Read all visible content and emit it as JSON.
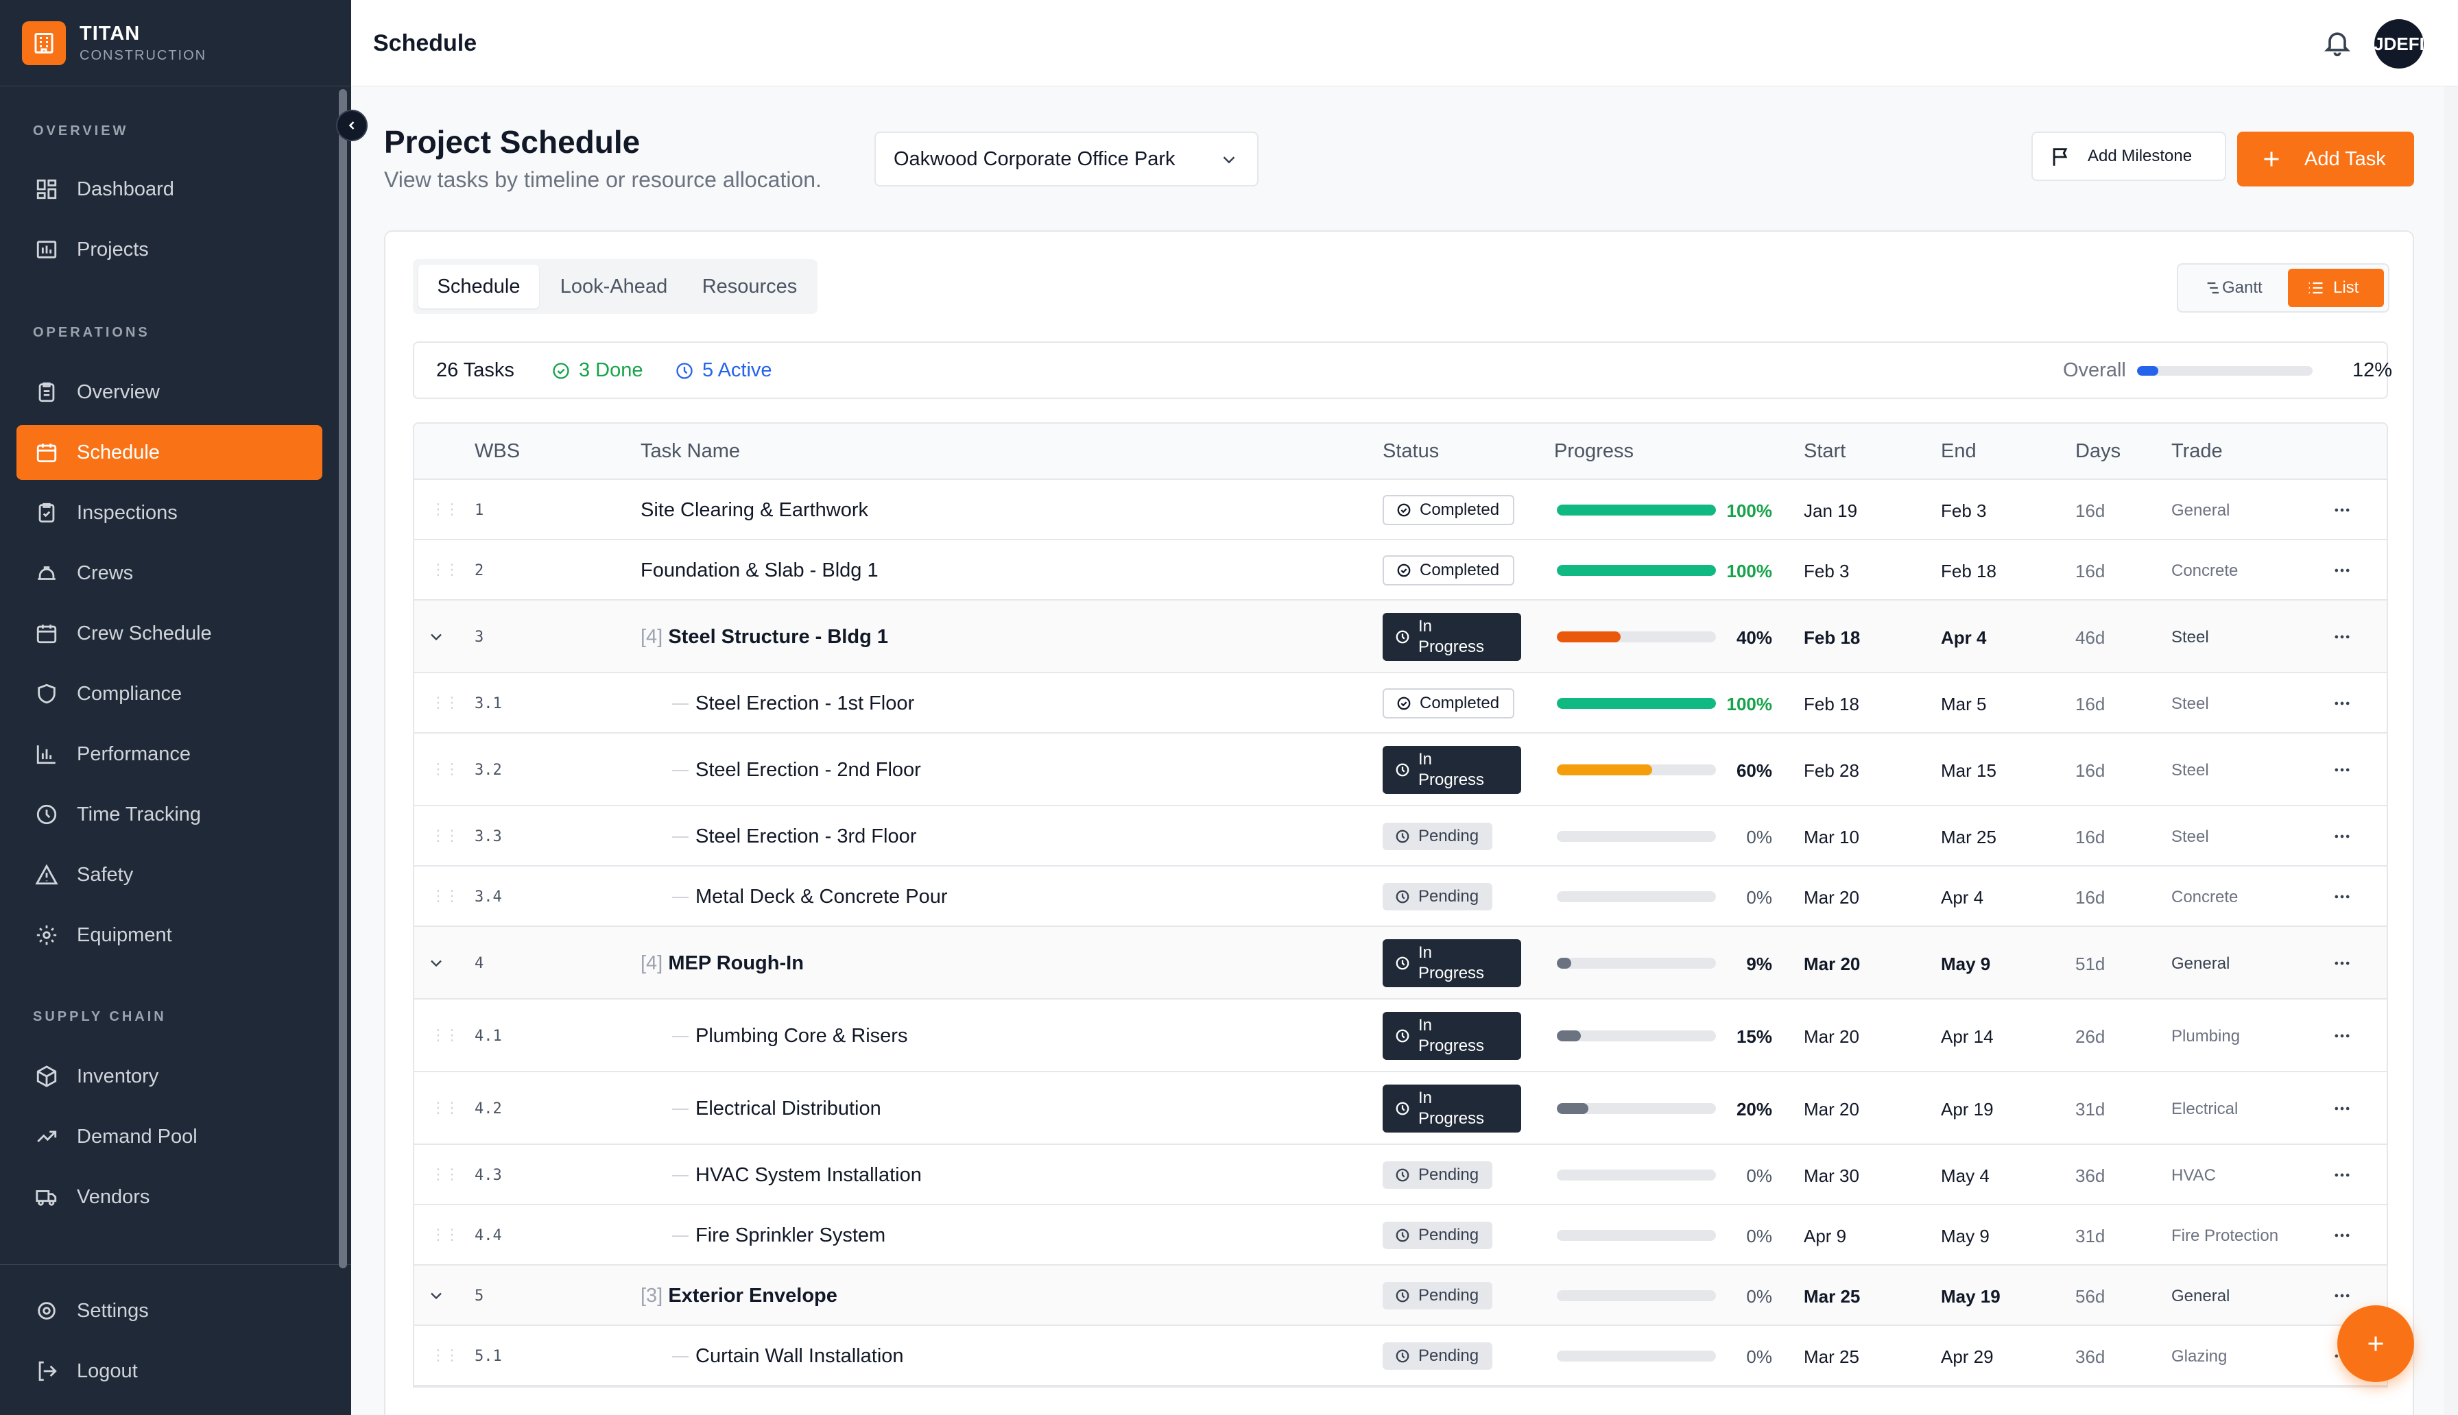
{
  "brand": {
    "name": "TITAN",
    "sub": "CONSTRUCTION"
  },
  "sidebar": {
    "sections": [
      {
        "label": "OVERVIEW"
      },
      {
        "label": "OPERATIONS"
      },
      {
        "label": "SUPPLY CHAIN"
      }
    ],
    "items": [
      {
        "label": "Dashboard",
        "icon": "dashboard-icon"
      },
      {
        "label": "Projects",
        "icon": "projects-icon"
      },
      {
        "label": "Overview",
        "icon": "clipboard-icon"
      },
      {
        "label": "Schedule",
        "icon": "calendar-icon",
        "active": true
      },
      {
        "label": "Inspections",
        "icon": "clipboard-check-icon"
      },
      {
        "label": "Crews",
        "icon": "hardhat-icon"
      },
      {
        "label": "Crew Schedule",
        "icon": "calendar-icon"
      },
      {
        "label": "Compliance",
        "icon": "shield-icon"
      },
      {
        "label": "Performance",
        "icon": "bar-chart-icon"
      },
      {
        "label": "Time Tracking",
        "icon": "clock-icon"
      },
      {
        "label": "Safety",
        "icon": "warning-icon"
      },
      {
        "label": "Equipment",
        "icon": "gear-icon"
      },
      {
        "label": "Inventory",
        "icon": "box-icon"
      },
      {
        "label": "Demand Pool",
        "icon": "trending-icon"
      },
      {
        "label": "Vendors",
        "icon": "truck-icon"
      },
      {
        "label": "Settings",
        "icon": "settings-icon"
      },
      {
        "label": "Logout",
        "icon": "logout-icon"
      }
    ]
  },
  "topbar": {
    "title": "Schedule",
    "avatar": "JDEFI"
  },
  "header": {
    "title": "Project Schedule",
    "subtitle": "View tasks by timeline or resource allocation.",
    "project": "Oakwood Corporate Office Park",
    "add_milestone": "Add Milestone",
    "add_task": "Add Task"
  },
  "tabs": [
    "Schedule",
    "Look-Ahead",
    "Resources"
  ],
  "view_toggle": {
    "gantt": "Gantt",
    "list": "List"
  },
  "summary": {
    "tasks": "26 Tasks",
    "done": "3 Done",
    "active": "5 Active",
    "overall_label": "Overall",
    "overall_pct": "12%",
    "overall_value": 0.12
  },
  "columns": {
    "wbs": "WBS",
    "task": "Task Name",
    "status": "Status",
    "progress": "Progress",
    "start": "Start",
    "end": "End",
    "days": "Days",
    "trade": "Trade"
  },
  "rows": [
    {
      "wbs": "1",
      "name": "Site Clearing & Earthwork",
      "status": "Completed",
      "progress": 100,
      "pct": "100%",
      "start": "Jan 19",
      "end": "Feb 3",
      "days": "16d",
      "trade": "General",
      "level": 0,
      "count": ""
    },
    {
      "wbs": "2",
      "name": "Foundation & Slab - Bldg 1",
      "status": "Completed",
      "progress": 100,
      "pct": "100%",
      "start": "Feb 3",
      "end": "Feb 18",
      "days": "16d",
      "trade": "Concrete",
      "level": 0,
      "count": ""
    },
    {
      "wbs": "3",
      "name": "Steel Structure - Bldg 1",
      "status": "In Progress",
      "progress": 40,
      "pct": "40%",
      "start": "Feb 18",
      "end": "Apr 4",
      "days": "46d",
      "trade": "Steel",
      "level": 0,
      "count": "[4]",
      "color": "#ea580c"
    },
    {
      "wbs": "3.1",
      "name": "Steel Erection - 1st Floor",
      "status": "Completed",
      "progress": 100,
      "pct": "100%",
      "start": "Feb 18",
      "end": "Mar 5",
      "days": "16d",
      "trade": "Steel",
      "level": 1,
      "count": ""
    },
    {
      "wbs": "3.2",
      "name": "Steel Erection - 2nd Floor",
      "status": "In Progress",
      "progress": 60,
      "pct": "60%",
      "start": "Feb 28",
      "end": "Mar 15",
      "days": "16d",
      "trade": "Steel",
      "level": 1,
      "count": "",
      "color": "#f59e0b"
    },
    {
      "wbs": "3.3",
      "name": "Steel Erection - 3rd Floor",
      "status": "Pending",
      "progress": 0,
      "pct": "0%",
      "start": "Mar 10",
      "end": "Mar 25",
      "days": "16d",
      "trade": "Steel",
      "level": 1,
      "count": ""
    },
    {
      "wbs": "3.4",
      "name": "Metal Deck & Concrete Pour",
      "status": "Pending",
      "progress": 0,
      "pct": "0%",
      "start": "Mar 20",
      "end": "Apr 4",
      "days": "16d",
      "trade": "Concrete",
      "level": 1,
      "count": ""
    },
    {
      "wbs": "4",
      "name": "MEP Rough-In",
      "status": "In Progress",
      "progress": 9,
      "pct": "9%",
      "start": "Mar 20",
      "end": "May 9",
      "days": "51d",
      "trade": "General",
      "level": 0,
      "count": "[4]",
      "color": "#6b7280"
    },
    {
      "wbs": "4.1",
      "name": "Plumbing Core & Risers",
      "status": "In Progress",
      "progress": 15,
      "pct": "15%",
      "start": "Mar 20",
      "end": "Apr 14",
      "days": "26d",
      "trade": "Plumbing",
      "level": 1,
      "count": "",
      "color": "#6b7280"
    },
    {
      "wbs": "4.2",
      "name": "Electrical Distribution",
      "status": "In Progress",
      "progress": 20,
      "pct": "20%",
      "start": "Mar 20",
      "end": "Apr 19",
      "days": "31d",
      "trade": "Electrical",
      "level": 1,
      "count": "",
      "color": "#6b7280"
    },
    {
      "wbs": "4.3",
      "name": "HVAC System Installation",
      "status": "Pending",
      "progress": 0,
      "pct": "0%",
      "start": "Mar 30",
      "end": "May 4",
      "days": "36d",
      "trade": "HVAC",
      "level": 1,
      "count": ""
    },
    {
      "wbs": "4.4",
      "name": "Fire Sprinkler System",
      "status": "Pending",
      "progress": 0,
      "pct": "0%",
      "start": "Apr 9",
      "end": "May 9",
      "days": "31d",
      "trade": "Fire Protection",
      "level": 1,
      "count": ""
    },
    {
      "wbs": "5",
      "name": "Exterior Envelope",
      "status": "Pending",
      "progress": 0,
      "pct": "0%",
      "start": "Mar 25",
      "end": "May 19",
      "days": "56d",
      "trade": "General",
      "level": 0,
      "count": "[3]"
    },
    {
      "wbs": "5.1",
      "name": "Curtain Wall Installation",
      "status": "Pending",
      "progress": 0,
      "pct": "0%",
      "start": "Mar 25",
      "end": "Apr 29",
      "days": "36d",
      "trade": "Glazing",
      "level": 1,
      "count": ""
    }
  ],
  "colors": {
    "accent": "#f97316",
    "sidebar": "#1f2937",
    "complete": "#10b981",
    "inprogress": "#1f2937",
    "pending": "#e5e7eb"
  }
}
